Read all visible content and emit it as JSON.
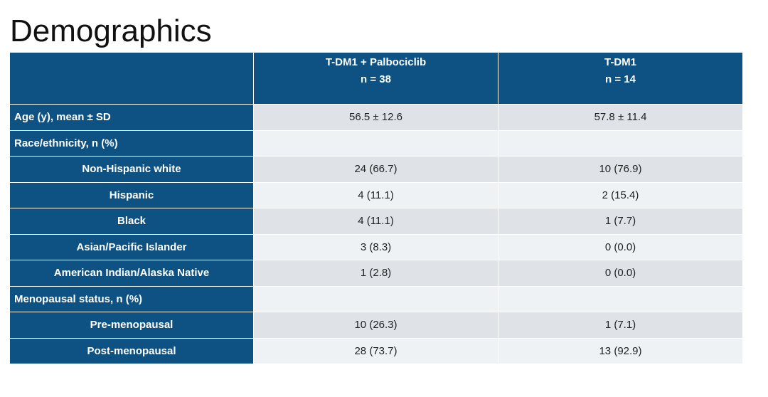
{
  "header": {
    "title": "Demographics"
  },
  "table": {
    "columns": [
      {
        "name": "T-DM1 + Palbociclib",
        "n": "n = 38"
      },
      {
        "name": "T-DM1",
        "n": "n = 14"
      }
    ],
    "rows": [
      {
        "label": "Age (y), mean ± SD",
        "values": [
          "56.5 ± 12.6",
          "57.8 ± 11.4"
        ]
      },
      {
        "label": "Race/ethnicity, n (%)",
        "items": [
          {
            "label": "Non-Hispanic white",
            "values": [
              "24 (66.7)",
              "10 (76.9)"
            ]
          },
          {
            "label": "Hispanic",
            "values": [
              "4 (11.1)",
              "2 (15.4)"
            ]
          },
          {
            "label": "Black",
            "values": [
              "4 (11.1)",
              "1 (7.7)"
            ]
          },
          {
            "label": "Asian/Pacific Islander",
            "values": [
              "3 (8.3)",
              "0 (0.0)"
            ]
          },
          {
            "label": "American Indian/Alaska Native",
            "values": [
              "1 (2.8)",
              "0 (0.0)"
            ]
          }
        ]
      },
      {
        "label": "Menopausal status, n (%)",
        "items": [
          {
            "label": "Pre-menopausal",
            "values": [
              "10 (26.3)",
              "1 (7.1)"
            ]
          },
          {
            "label": "Post-menopausal",
            "values": [
              "28 (73.7)",
              "13 (92.9)"
            ]
          }
        ]
      }
    ]
  }
}
